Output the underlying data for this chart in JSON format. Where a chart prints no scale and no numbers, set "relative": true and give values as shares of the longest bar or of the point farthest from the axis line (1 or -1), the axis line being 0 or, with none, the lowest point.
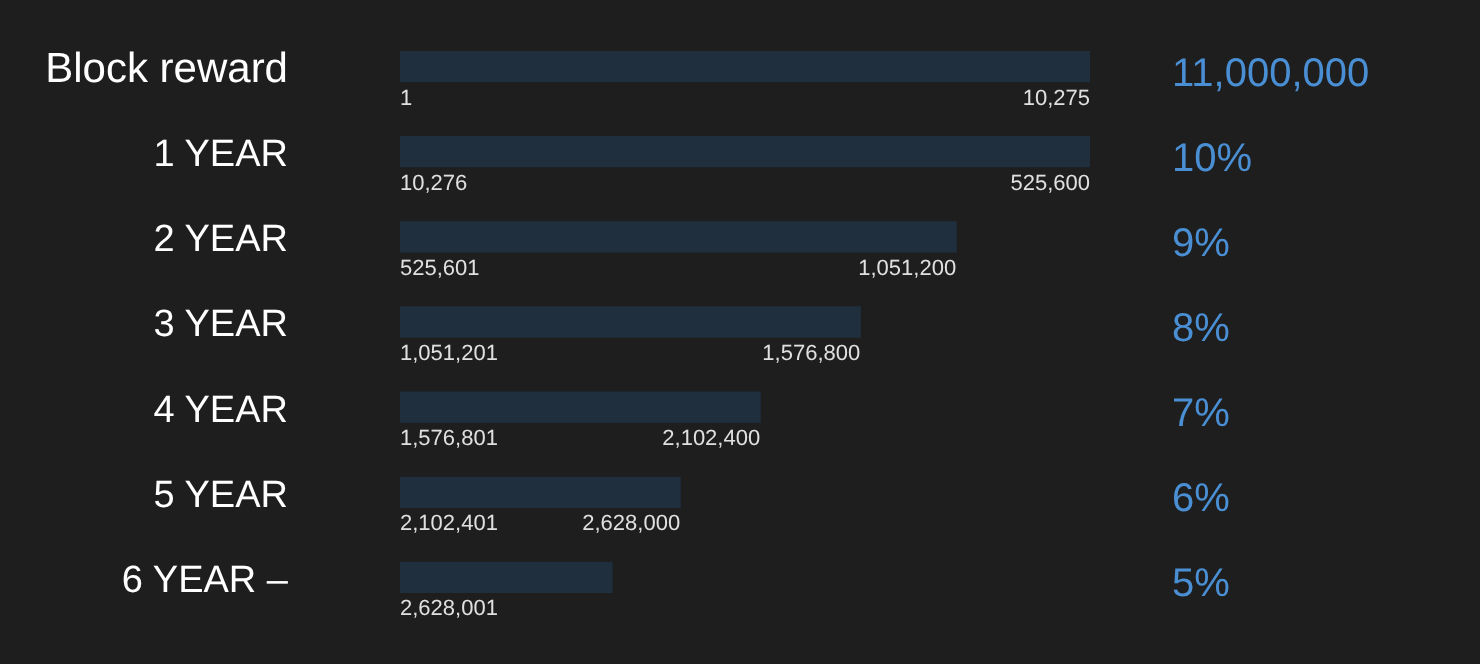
{
  "chart_data": {
    "type": "bar",
    "orientation": "horizontal",
    "relative": true,
    "categories": [
      "Block reward",
      "1 YEAR",
      "2 YEAR",
      "3 YEAR",
      "4 YEAR",
      "5 YEAR",
      "6 YEAR –"
    ],
    "values": [
      1,
      1,
      0.806,
      0.667,
      0.522,
      0.406,
      0.307
    ],
    "color": "#1f2f3d",
    "annotations": [
      "11,000,000",
      "1",
      "10,275",
      "10%",
      "10,276",
      "525,600",
      "9%",
      "525,601",
      "1,051,200",
      "8%",
      "1,051,201",
      "1,576,800",
      "7%",
      "1,576,801",
      "2,102,400",
      "6%",
      "2,102,401",
      "2,628,000",
      "5%",
      "2,628,001"
    ],
    "legend": false
  }
}
